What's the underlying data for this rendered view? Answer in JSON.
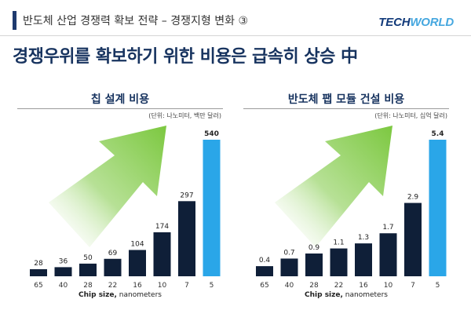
{
  "header": {
    "title": "반도체 산업 경쟁력 확보 전략 – 경쟁지형 변화 ③",
    "logo_text": "TECHWORLD"
  },
  "headline": "경쟁우위를 확보하기 위한 비용은 급속히 상승 中",
  "colors": {
    "bar_dark": "#0f1f38",
    "bar_highlight": "#2aa6e8",
    "arrow_green": "#7cc840",
    "title_navy": "#17335f"
  },
  "chart_data": [
    {
      "type": "bar",
      "title": "칩 설계 비용",
      "unit": "(단위: 나노미터, 백만 달러)",
      "categories": [
        "65",
        "40",
        "28",
        "22",
        "16",
        "10",
        "7",
        "5"
      ],
      "values": [
        28,
        36,
        50,
        69,
        104,
        174,
        297,
        540
      ],
      "value_labels": [
        "28",
        "36",
        "50",
        "69",
        "104",
        "174",
        "297",
        "540"
      ],
      "highlight_index": 7,
      "xlabel_bold": "Chip size,",
      "xlabel_rest": " nanometers",
      "ylabel": "",
      "ylim": [
        0,
        540
      ]
    },
    {
      "type": "bar",
      "title": "반도체 팹 모듈 건설 비용",
      "unit": "(단위: 나노미터, 십억 달러)",
      "categories": [
        "65",
        "40",
        "28",
        "22",
        "16",
        "10",
        "7",
        "5"
      ],
      "values": [
        0.4,
        0.7,
        0.9,
        1.1,
        1.3,
        1.7,
        2.9,
        5.4
      ],
      "value_labels": [
        "0.4",
        "0.7",
        "0.9",
        "1.1",
        "1.3",
        "1.7",
        "2.9",
        "5.4"
      ],
      "highlight_index": 7,
      "xlabel_bold": "Chip size,",
      "xlabel_rest": " nanometers",
      "ylabel": "",
      "ylim": [
        0,
        5.4
      ]
    }
  ]
}
